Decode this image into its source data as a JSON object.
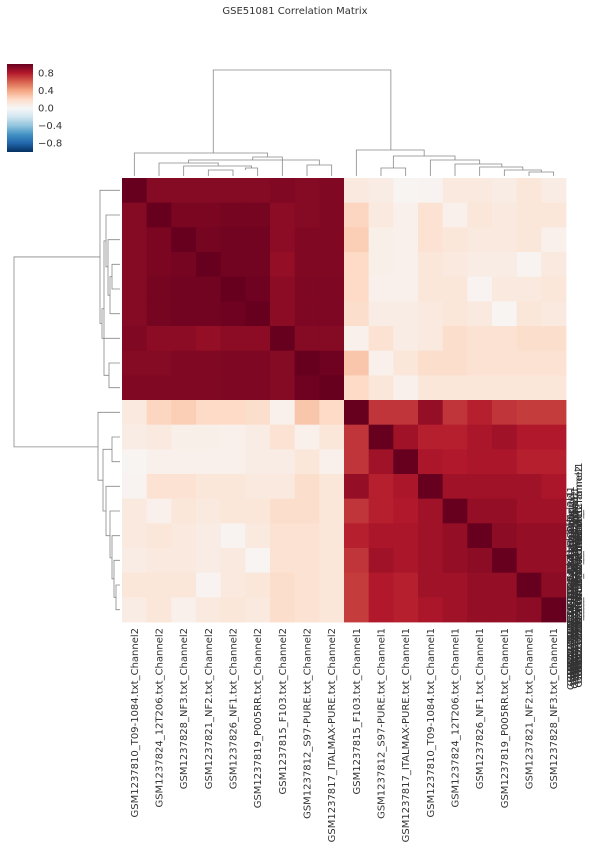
{
  "chart_data": {
    "type": "heatmap",
    "title": "GSE51081 Correlation Matrix",
    "labels": [
      "GSM1237810_T09-1084.txt_Channel2",
      "GSM1237824_12T206.txt_Channel2",
      "GSM1237828_NF3.txt_Channel2",
      "GSM1237821_NF2.txt_Channel2",
      "GSM1237826_NF1.txt_Channel2",
      "GSM1237819_P005RR.txt_Channel2",
      "GSM1237815_F103.txt_Channel2",
      "GSM1237812_S97-PURE.txt_Channel2",
      "GSM1237817_ITALMAX-PURE.txt_Channel2",
      "GSM1237815_F103.txt_Channel1",
      "GSM1237812_S97-PURE.txt_Channel1",
      "GSM1237817_ITALMAX-PURE.txt_Channel1",
      "GSM1237810_T09-1084.txt_Channel1",
      "GSM1237824_12T206.txt_Channel1",
      "GSM1237826_NF1.txt_Channel1",
      "GSM1237819_P005RR.txt_Channel1",
      "GSM1237821_NF2.txt_Channel1",
      "GSM1237828_NF3.txt_Channel1"
    ],
    "matrix": [
      [
        1.0,
        0.92,
        0.92,
        0.92,
        0.92,
        0.92,
        0.93,
        0.92,
        0.93,
        0.1,
        0.08,
        0.02,
        0.03,
        0.1,
        0.1,
        0.08,
        0.12,
        0.08
      ],
      [
        0.92,
        1.0,
        0.95,
        0.95,
        0.96,
        0.96,
        0.9,
        0.92,
        0.93,
        0.22,
        0.1,
        0.05,
        0.15,
        0.05,
        0.12,
        0.1,
        0.12,
        0.12
      ],
      [
        0.92,
        0.95,
        1.0,
        0.96,
        0.97,
        0.97,
        0.9,
        0.93,
        0.93,
        0.25,
        0.06,
        0.05,
        0.15,
        0.12,
        0.1,
        0.1,
        0.12,
        0.05
      ],
      [
        0.92,
        0.95,
        0.96,
        1.0,
        0.97,
        0.97,
        0.88,
        0.93,
        0.93,
        0.2,
        0.06,
        0.05,
        0.12,
        0.1,
        0.08,
        0.08,
        0.03,
        0.1
      ],
      [
        0.92,
        0.96,
        0.97,
        0.97,
        1.0,
        0.98,
        0.9,
        0.94,
        0.94,
        0.2,
        0.05,
        0.05,
        0.12,
        0.12,
        0.03,
        0.1,
        0.1,
        0.12
      ],
      [
        0.92,
        0.96,
        0.97,
        0.97,
        0.98,
        1.0,
        0.9,
        0.94,
        0.94,
        0.18,
        0.08,
        0.08,
        0.1,
        0.12,
        0.1,
        0.02,
        0.12,
        0.1
      ],
      [
        0.93,
        0.9,
        0.9,
        0.88,
        0.9,
        0.9,
        1.0,
        0.92,
        0.92,
        0.05,
        0.15,
        0.08,
        0.1,
        0.18,
        0.15,
        0.15,
        0.18,
        0.18
      ],
      [
        0.92,
        0.92,
        0.93,
        0.93,
        0.94,
        0.94,
        0.92,
        1.0,
        0.98,
        0.28,
        0.05,
        0.12,
        0.18,
        0.18,
        0.15,
        0.15,
        0.15,
        0.15
      ],
      [
        0.93,
        0.93,
        0.93,
        0.93,
        0.94,
        0.94,
        0.92,
        0.98,
        1.0,
        0.2,
        0.12,
        0.05,
        0.12,
        0.12,
        0.12,
        0.12,
        0.12,
        0.12
      ],
      [
        0.1,
        0.22,
        0.25,
        0.2,
        0.2,
        0.18,
        0.05,
        0.28,
        0.2,
        1.0,
        0.72,
        0.72,
        0.88,
        0.72,
        0.78,
        0.72,
        0.7,
        0.7
      ],
      [
        0.08,
        0.1,
        0.06,
        0.06,
        0.05,
        0.08,
        0.15,
        0.05,
        0.12,
        0.72,
        1.0,
        0.85,
        0.78,
        0.78,
        0.82,
        0.85,
        0.8,
        0.8
      ],
      [
        0.02,
        0.05,
        0.05,
        0.05,
        0.05,
        0.08,
        0.08,
        0.12,
        0.05,
        0.72,
        0.85,
        1.0,
        0.82,
        0.8,
        0.82,
        0.82,
        0.78,
        0.78
      ],
      [
        0.03,
        0.15,
        0.15,
        0.12,
        0.12,
        0.1,
        0.1,
        0.18,
        0.12,
        0.88,
        0.78,
        0.82,
        1.0,
        0.85,
        0.85,
        0.85,
        0.85,
        0.82
      ],
      [
        0.1,
        0.05,
        0.12,
        0.1,
        0.12,
        0.12,
        0.18,
        0.18,
        0.12,
        0.72,
        0.78,
        0.8,
        0.85,
        1.0,
        0.88,
        0.88,
        0.85,
        0.85
      ],
      [
        0.1,
        0.12,
        0.1,
        0.08,
        0.03,
        0.1,
        0.15,
        0.15,
        0.12,
        0.78,
        0.82,
        0.82,
        0.85,
        0.88,
        1.0,
        0.9,
        0.88,
        0.88
      ],
      [
        0.08,
        0.1,
        0.1,
        0.08,
        0.1,
        0.02,
        0.15,
        0.15,
        0.12,
        0.72,
        0.85,
        0.82,
        0.85,
        0.88,
        0.9,
        1.0,
        0.88,
        0.88
      ],
      [
        0.12,
        0.12,
        0.12,
        0.03,
        0.1,
        0.12,
        0.18,
        0.15,
        0.12,
        0.7,
        0.8,
        0.78,
        0.85,
        0.85,
        0.88,
        0.88,
        1.0,
        0.9
      ],
      [
        0.08,
        0.12,
        0.05,
        0.1,
        0.12,
        0.1,
        0.18,
        0.15,
        0.12,
        0.7,
        0.8,
        0.78,
        0.82,
        0.85,
        0.88,
        0.88,
        0.9,
        1.0
      ]
    ],
    "colorbar": {
      "vmin": -1.0,
      "vmax": 1.0,
      "ticks": [
        0.8,
        0.4,
        0.0,
        -0.4,
        -0.8
      ],
      "tick_labels": [
        "0.8",
        "0.4",
        "0.0",
        "−0.4",
        "−0.8"
      ],
      "colormap": "RdBu_r",
      "stops": [
        "#053061",
        "#2166ac",
        "#4393c3",
        "#92c5de",
        "#d1e5f0",
        "#f7f7f7",
        "#fddbc7",
        "#f4a582",
        "#d6604d",
        "#b2182b",
        "#67001f"
      ]
    },
    "dendrogram": "two clusters: Channel2 samples and Channel1 samples"
  }
}
